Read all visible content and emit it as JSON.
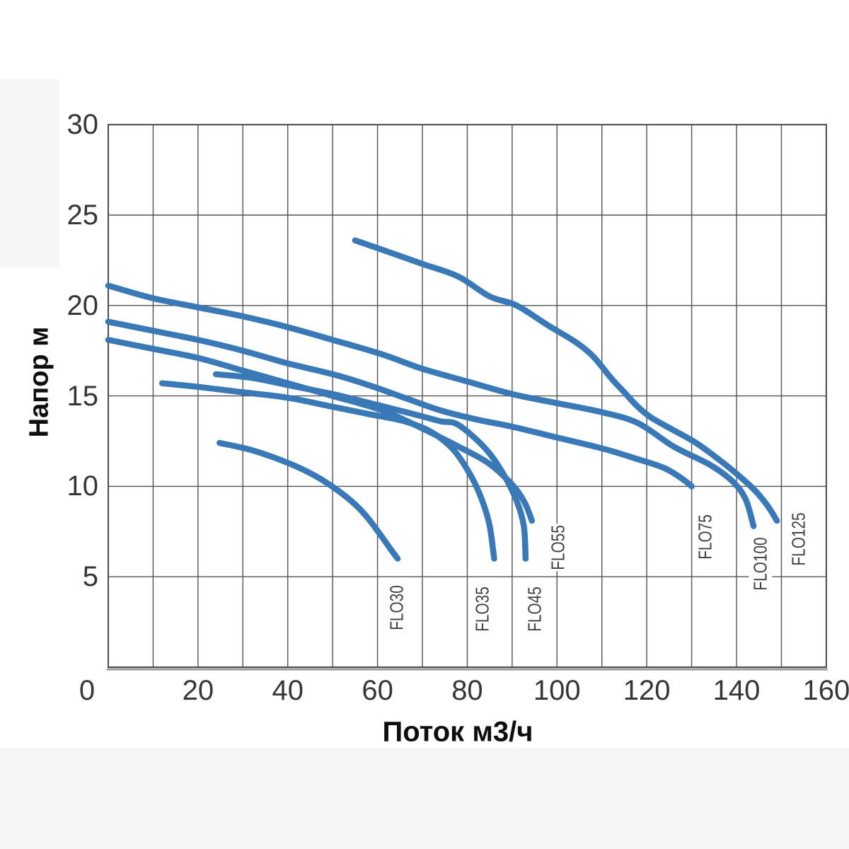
{
  "chart_data": {
    "type": "line",
    "title": "",
    "xlabel": "Поток м3/ч",
    "ylabel": "Напор м",
    "xlim": [
      0,
      160
    ],
    "ylim": [
      0,
      30
    ],
    "x_ticks": [
      0,
      20,
      40,
      60,
      80,
      100,
      120,
      140,
      160
    ],
    "y_ticks": [
      5,
      10,
      15,
      20,
      25,
      30
    ],
    "x_grid_step": 10,
    "y_grid_step": 5,
    "grid": true,
    "legend_position": "inline-rotated-labels",
    "line_color": "#3979b7",
    "grid_color": "#525252",
    "border_color": "#4a4a4a",
    "baseline_color": "#989898",
    "tick_color": "#363636",
    "curve_label_color": "#3f3f3f",
    "series": [
      {
        "name": "flo30",
        "label": "FLO30",
        "label_pos": [
          64.3,
          3.3
        ],
        "points": [
          [
            24.8,
            12.4
          ],
          [
            32,
            12.0
          ],
          [
            40,
            11.3
          ],
          [
            46,
            10.6
          ],
          [
            51,
            9.8
          ],
          [
            55,
            9.0
          ],
          [
            58,
            8.2
          ],
          [
            61,
            7.2
          ],
          [
            63,
            6.5
          ],
          [
            64.5,
            6.0
          ]
        ]
      },
      {
        "name": "flo35",
        "label": "FLO35",
        "label_pos": [
          83.4,
          3.2
        ],
        "points": [
          [
            12,
            15.7
          ],
          [
            20,
            15.5
          ],
          [
            30,
            15.2
          ],
          [
            40,
            14.9
          ],
          [
            50,
            14.4
          ],
          [
            58,
            14.0
          ],
          [
            66,
            13.6
          ],
          [
            72,
            13.0
          ],
          [
            77,
            12.0
          ],
          [
            81,
            10.5
          ],
          [
            83.5,
            9.1
          ],
          [
            85,
            7.8
          ],
          [
            86,
            6.0
          ]
        ]
      },
      {
        "name": "flo45",
        "label": "FLO45",
        "label_pos": [
          95.1,
          3.2
        ],
        "points": [
          [
            24,
            16.2
          ],
          [
            32,
            16.0
          ],
          [
            40,
            15.6
          ],
          [
            50,
            15.1
          ],
          [
            60,
            14.5
          ],
          [
            68,
            14.0
          ],
          [
            74,
            13.6
          ],
          [
            78,
            13.4
          ],
          [
            84,
            12.1
          ],
          [
            88,
            10.7
          ],
          [
            91,
            9.2
          ],
          [
            92.6,
            7.8
          ],
          [
            93,
            6.0
          ]
        ]
      },
      {
        "name": "flo55",
        "label": "FLO55",
        "label_pos": [
          100.3,
          6.6
        ],
        "points": [
          [
            0,
            18.1
          ],
          [
            10,
            17.6
          ],
          [
            20,
            17.1
          ],
          [
            30,
            16.4
          ],
          [
            40,
            15.7
          ],
          [
            50,
            15.0
          ],
          [
            61,
            14.2
          ],
          [
            70,
            13.2
          ],
          [
            78,
            12.2
          ],
          [
            84,
            11.4
          ],
          [
            88,
            10.6
          ],
          [
            91,
            9.8
          ],
          [
            93,
            9.0
          ],
          [
            94.4,
            8.1
          ]
        ]
      },
      {
        "name": "flo75",
        "label": "FLO75",
        "label_pos": [
          133.0,
          7.2
        ],
        "points": [
          [
            0,
            19.1
          ],
          [
            10,
            18.6
          ],
          [
            20,
            18.1
          ],
          [
            30,
            17.5
          ],
          [
            40,
            16.8
          ],
          [
            50,
            16.2
          ],
          [
            58,
            15.6
          ],
          [
            66,
            14.9
          ],
          [
            74,
            14.2
          ],
          [
            82,
            13.7
          ],
          [
            90,
            13.3
          ],
          [
            100,
            12.7
          ],
          [
            110,
            12.1
          ],
          [
            118,
            11.5
          ],
          [
            124,
            11.0
          ],
          [
            128,
            10.4
          ],
          [
            130,
            10.0
          ]
        ]
      },
      {
        "name": "flo100",
        "label": "FLO100",
        "label_pos": [
          145.4,
          5.7
        ],
        "points": [
          [
            0,
            21.1
          ],
          [
            10,
            20.4
          ],
          [
            20,
            19.9
          ],
          [
            30,
            19.4
          ],
          [
            40,
            18.8
          ],
          [
            50,
            18.1
          ],
          [
            61,
            17.3
          ],
          [
            70,
            16.5
          ],
          [
            80,
            15.8
          ],
          [
            90,
            15.1
          ],
          [
            100,
            14.6
          ],
          [
            110,
            14.1
          ],
          [
            118,
            13.5
          ],
          [
            126,
            12.2
          ],
          [
            134,
            11.2
          ],
          [
            139,
            10.3
          ],
          [
            142,
            9.3
          ],
          [
            143.8,
            7.8
          ]
        ]
      },
      {
        "name": "flo125",
        "label": "FLO125",
        "label_pos": [
          153.9,
          7.1
        ],
        "points": [
          [
            55,
            23.6
          ],
          [
            62,
            23.0
          ],
          [
            70,
            22.3
          ],
          [
            78,
            21.6
          ],
          [
            85,
            20.5
          ],
          [
            91,
            20.0
          ],
          [
            98,
            18.9
          ],
          [
            104,
            18.0
          ],
          [
            108,
            17.2
          ],
          [
            112,
            16.0
          ],
          [
            115,
            15.2
          ],
          [
            118,
            14.4
          ],
          [
            121,
            13.8
          ],
          [
            126,
            13.1
          ],
          [
            131,
            12.4
          ],
          [
            136,
            11.5
          ],
          [
            140,
            10.7
          ],
          [
            144,
            9.8
          ],
          [
            147,
            8.9
          ],
          [
            149,
            8.1
          ]
        ]
      }
    ]
  }
}
